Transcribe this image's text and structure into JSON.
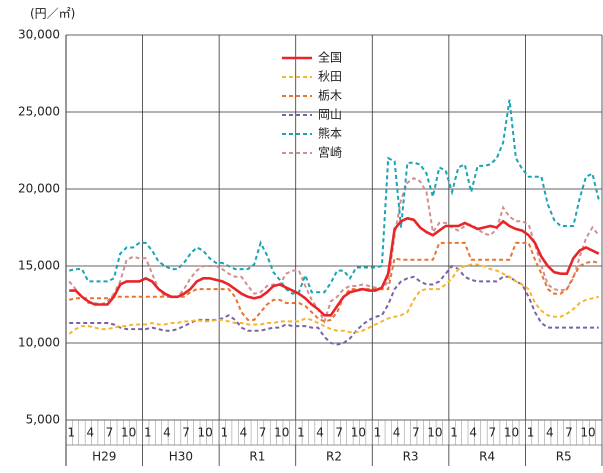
{
  "chart_data": {
    "type": "line",
    "y_unit": "(円／㎡)",
    "categories": [
      "1",
      null,
      null,
      "4",
      null,
      null,
      "7",
      null,
      null,
      "10",
      null,
      null,
      "1",
      null,
      null,
      "4",
      null,
      null,
      "7",
      null,
      null,
      "10",
      null,
      null,
      "1",
      null,
      null,
      "4",
      null,
      null,
      "7",
      null,
      null,
      "10",
      null,
      null,
      "1",
      null,
      null,
      "4",
      null,
      null,
      "7",
      null,
      null,
      "10",
      null,
      null,
      "1",
      null,
      null,
      "4",
      null,
      null,
      "7",
      null,
      null,
      "10",
      null,
      null,
      "1",
      null,
      null,
      "4",
      null,
      null,
      "7",
      null,
      null,
      "10",
      null,
      null,
      "1",
      null,
      null,
      "4",
      null,
      null,
      "7",
      null,
      null,
      "10",
      null,
      null
    ],
    "groups": [
      "H29",
      "H30",
      "R1",
      "R2",
      "R3",
      "R4",
      "R5"
    ],
    "ylim": [
      5000,
      30000
    ],
    "yticks": [
      {
        "value": 5000,
        "label": "5,000"
      },
      {
        "value": 10000,
        "label": "10,000"
      },
      {
        "value": 15000,
        "label": "15,000"
      },
      {
        "value": 20000,
        "label": "20,000"
      },
      {
        "value": 25000,
        "label": "25,000"
      },
      {
        "value": 30000,
        "label": "30,000"
      }
    ],
    "grid": true,
    "legend": "top-center",
    "series": [
      {
        "name": "全国",
        "color": "#e8262a",
        "style": "solid",
        "values": [
          13400,
          13400,
          13000,
          12700,
          12500,
          12500,
          12500,
          13000,
          13800,
          14000,
          14000,
          14000,
          14200,
          14000,
          13500,
          13200,
          13000,
          13000,
          13200,
          13500,
          14000,
          14200,
          14200,
          14100,
          14000,
          13800,
          13500,
          13200,
          13000,
          12900,
          13000,
          13300,
          13700,
          13800,
          13600,
          13400,
          13200,
          12900,
          12500,
          12200,
          11800,
          11800,
          12400,
          13000,
          13300,
          13400,
          13500,
          13400,
          13400,
          13600,
          14500,
          17400,
          17900,
          18100,
          18000,
          17500,
          17200,
          17000,
          17300,
          17600,
          17600,
          17600,
          17800,
          17600,
          17400,
          17500,
          17600,
          17500,
          17900,
          17600,
          17400,
          17300,
          17000,
          16500,
          15600,
          15000,
          14600,
          14500,
          14500,
          15500,
          16000,
          16200,
          16000,
          15800
        ]
      },
      {
        "name": "秋田",
        "color": "#f7b52c",
        "style": "dashed",
        "values": [
          10600,
          10900,
          11100,
          11100,
          11000,
          10900,
          10900,
          11000,
          11100,
          11100,
          11200,
          11200,
          11200,
          11300,
          11200,
          11200,
          11300,
          11300,
          11400,
          11400,
          11500,
          11400,
          11400,
          11500,
          11500,
          11400,
          11300,
          11300,
          11200,
          11200,
          11200,
          11300,
          11300,
          11400,
          11400,
          11400,
          11400,
          11600,
          11500,
          11300,
          11100,
          10900,
          10800,
          10800,
          10700,
          10700,
          10800,
          11000,
          11200,
          11400,
          11600,
          11700,
          11800,
          12000,
          12800,
          13400,
          13500,
          13500,
          13500,
          13800,
          14200,
          14800,
          15000,
          15100,
          15100,
          15000,
          14800,
          14700,
          14500,
          14300,
          14000,
          13800,
          13500,
          12600,
          12100,
          11800,
          11700,
          11700,
          11900,
          12200,
          12600,
          12800,
          12900,
          13000
        ]
      },
      {
        "name": "栃木",
        "color": "#e8742e",
        "style": "dashed",
        "values": [
          12800,
          12900,
          12900,
          12900,
          12900,
          12900,
          12900,
          13000,
          13000,
          13000,
          13000,
          13000,
          13000,
          13000,
          13000,
          13000,
          13000,
          13000,
          13000,
          13300,
          13500,
          13500,
          13500,
          13500,
          13500,
          13500,
          13000,
          12000,
          11500,
          11500,
          12000,
          12500,
          12800,
          12800,
          12600,
          12600,
          12600,
          12400,
          12000,
          11600,
          11400,
          11500,
          12000,
          13000,
          13500,
          13500,
          13500,
          13500,
          13500,
          13500,
          13500,
          15500,
          15400,
          15400,
          15400,
          15400,
          15400,
          15400,
          16500,
          16500,
          16500,
          16500,
          16500,
          15400,
          15400,
          15400,
          15400,
          15400,
          15400,
          15400,
          16500,
          16500,
          16500,
          15400,
          14500,
          13500,
          13200,
          13200,
          13500,
          14300,
          15000,
          15200,
          15300,
          15200
        ]
      },
      {
        "name": "岡山",
        "color": "#7b62a8",
        "style": "dashed",
        "values": [
          11300,
          11300,
          11300,
          11300,
          11300,
          11300,
          11300,
          11200,
          11000,
          10900,
          10900,
          10900,
          10900,
          11000,
          10900,
          10800,
          10800,
          10900,
          11100,
          11300,
          11500,
          11500,
          11500,
          11500,
          11600,
          11800,
          11500,
          11000,
          10800,
          10800,
          10800,
          10900,
          11000,
          11000,
          11200,
          11100,
          11100,
          11100,
          11000,
          11000,
          10400,
          10000,
          9900,
          10000,
          10300,
          10800,
          11200,
          11500,
          11700,
          11800,
          12500,
          13500,
          14000,
          14200,
          14300,
          14000,
          13800,
          13800,
          14000,
          14500,
          15000,
          14800,
          14300,
          14100,
          14000,
          14000,
          14000,
          14000,
          14300,
          14300,
          14000,
          13800,
          13000,
          12000,
          11300,
          11000,
          11000,
          11000,
          11000,
          11000,
          11000,
          11000,
          11000,
          11000
        ]
      },
      {
        "name": "熊本",
        "color": "#1ba3b3",
        "style": "dashed",
        "values": [
          14700,
          14800,
          14800,
          14000,
          14000,
          14000,
          14000,
          14200,
          15800,
          16200,
          16200,
          16500,
          16500,
          16000,
          15300,
          15000,
          14800,
          14800,
          15200,
          15800,
          16200,
          16000,
          15500,
          15200,
          15200,
          15000,
          14800,
          14800,
          14800,
          15100,
          16500,
          15700,
          14600,
          14100,
          13500,
          13200,
          13300,
          14400,
          13300,
          13300,
          13300,
          13900,
          14700,
          14700,
          14200,
          14900,
          14900,
          14900,
          14900,
          15000,
          22000,
          21800,
          17500,
          21700,
          21700,
          21600,
          21000,
          19500,
          21400,
          21200,
          19800,
          21400,
          21600,
          19800,
          21500,
          21500,
          21600,
          22000,
          23000,
          25800,
          22000,
          21300,
          20800,
          20800,
          20800,
          19000,
          18000,
          17600,
          17600,
          17600,
          19400,
          20800,
          21000,
          19300
        ]
      },
      {
        "name": "宮崎",
        "color": "#d0908f",
        "style": "dashed",
        "values": [
          14000,
          13500,
          13000,
          12600,
          12600,
          12500,
          12700,
          13200,
          14000,
          15400,
          15600,
          15500,
          15500,
          14500,
          13500,
          13000,
          13000,
          13000,
          13500,
          14200,
          14700,
          15000,
          15000,
          15000,
          14800,
          14500,
          14300,
          14300,
          13700,
          13200,
          13300,
          13700,
          13800,
          13800,
          14500,
          14700,
          14700,
          13700,
          12800,
          12200,
          11400,
          12700,
          13000,
          13500,
          13700,
          13700,
          13800,
          13700,
          13600,
          13500,
          14000,
          17000,
          19300,
          20400,
          20700,
          20500,
          19800,
          17200,
          17800,
          17800,
          17500,
          17300,
          17600,
          17700,
          17400,
          17100,
          17000,
          17400,
          18800,
          18200,
          17900,
          17900,
          17700,
          16400,
          15000,
          13800,
          13500,
          13400,
          13500,
          14200,
          15600,
          16800,
          17500,
          17000
        ]
      }
    ]
  }
}
